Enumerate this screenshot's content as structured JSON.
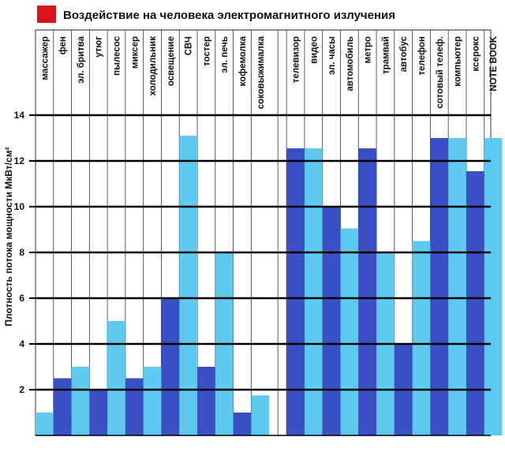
{
  "chart_data": {
    "type": "bar",
    "title": "Воздействие на человека электромагнитного излучения",
    "ylabel": "Плотность потока мощности МкВт/см²",
    "ylim": [
      0,
      14
    ],
    "yticks": [
      2,
      4,
      6,
      8,
      10,
      12,
      14
    ],
    "grid": true,
    "legend_color": "#d8141c",
    "colors": {
      "light": "#5fcaf0",
      "dark": "#3a4fc4"
    },
    "categories": [
      "массажер",
      "фен",
      "эл. бритва",
      "утюг",
      "пылесос",
      "миксер",
      "холодильник",
      "освещение",
      "СВЧ",
      "тостер",
      "эл. печь",
      "кофемолка",
      "соковыжималка",
      "телевизор",
      "видео",
      "эл. часы",
      "автомобиль",
      "метро",
      "трамвай",
      "автобус",
      "телефон",
      "сотовый телеф.",
      "компьютер",
      "ксерокс",
      "NOTE BOOK"
    ],
    "values": [
      1.0,
      2.5,
      3.0,
      2.0,
      5.0,
      2.5,
      3.0,
      6.0,
      13.1,
      3.0,
      8.0,
      1.0,
      1.75,
      12.55,
      12.55,
      10.0,
      9.05,
      12.55,
      8.0,
      4.0,
      8.5,
      13.0,
      13.0,
      11.55,
      13.0
    ],
    "shades": [
      "light",
      "dark",
      "light",
      "dark",
      "light",
      "dark",
      "light",
      "dark",
      "light",
      "dark",
      "light",
      "dark",
      "light",
      "dark",
      "light",
      "dark",
      "light",
      "dark",
      "light",
      "dark",
      "light",
      "dark",
      "light",
      "dark",
      "light"
    ]
  }
}
